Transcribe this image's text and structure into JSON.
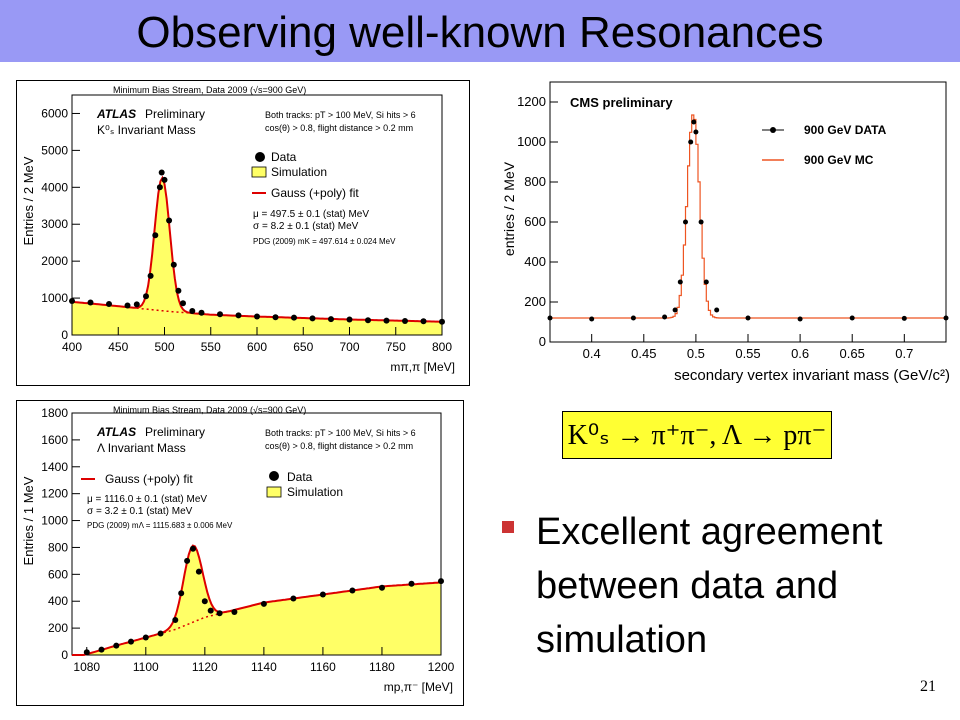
{
  "slide": {
    "title": "Observing well-known Resonances",
    "formula": "K⁰ₛ → π⁺π⁻, Λ → pπ⁻",
    "bullet": "Excellent agreement between data and simulation",
    "page_number": "21"
  },
  "colors": {
    "title_bar": "#9999f5",
    "simulation_fill": "#ffff66",
    "fit_line": "#dd0000",
    "cms_mc": "#ee5522",
    "data": "#000000",
    "bullet": "#cc3333",
    "formula_box": "#ffff33"
  },
  "chart_data": [
    {
      "type": "scatter",
      "header": "Minimum Bias Stream, Data 2009 (√s=900 GeV)",
      "experiment": "ATLAS",
      "status": "Preliminary",
      "subtitle": "K⁰ₛ Invariant Mass",
      "cuts": [
        "Both tracks: pT > 100 MeV, Si hits > 6",
        "cos(θ) > 0.8, flight distance > 0.2 mm"
      ],
      "xlabel": "mπ,π [MeV]",
      "ylabel": "Entries / 2 MeV",
      "xlim": [
        400,
        800
      ],
      "ylim": [
        0,
        6500
      ],
      "xticks": [
        400,
        450,
        500,
        550,
        600,
        650,
        700,
        750,
        800
      ],
      "yticks": [
        0,
        1000,
        2000,
        3000,
        4000,
        5000,
        6000
      ],
      "legend": [
        "Data",
        "Simulation",
        "Gauss (+poly) fit"
      ],
      "fit_results": [
        "μ = 497.5 ± 0.1 (stat) MeV",
        "σ = 8.2 ± 0.1 (stat) MeV",
        "PDG (2009) mK = 497.614 ± 0.024 MeV"
      ],
      "peak": {
        "mean": 497.5,
        "sigma": 8.2,
        "height": 3600
      },
      "background": {
        "x": [
          400,
          450,
          500,
          550,
          600,
          700,
          800
        ],
        "y": [
          900,
          780,
          650,
          550,
          500,
          420,
          360
        ]
      },
      "series": [
        {
          "name": "Data",
          "x": [
            400,
            420,
            440,
            460,
            470,
            480,
            485,
            490,
            495,
            497,
            500,
            505,
            510,
            515,
            520,
            530,
            540,
            560,
            580,
            600,
            620,
            640,
            660,
            680,
            700,
            720,
            740,
            760,
            780,
            800
          ],
          "y": [
            920,
            880,
            840,
            800,
            830,
            1050,
            1600,
            2700,
            4000,
            4400,
            4200,
            3100,
            1900,
            1200,
            860,
            650,
            600,
            560,
            530,
            500,
            480,
            470,
            450,
            430,
            420,
            400,
            390,
            380,
            370,
            360
          ]
        }
      ]
    },
    {
      "type": "scatter",
      "experiment": "CMS preliminary",
      "xlabel": "secondary vertex invariant mass (GeV/c²)",
      "ylabel": "entries / 2 MeV",
      "xlim": [
        0.36,
        0.74
      ],
      "ylim": [
        0,
        1300
      ],
      "xticks": [
        0.4,
        0.45,
        0.5,
        0.55,
        0.6,
        0.65,
        0.7
      ],
      "yticks": [
        0,
        200,
        400,
        600,
        800,
        1000,
        1200
      ],
      "legend": [
        "900 GeV DATA",
        "900 GeV MC"
      ],
      "peak": {
        "mean": 0.4976,
        "sigma": 0.006,
        "height": 1020
      },
      "background": {
        "x": [
          0.36,
          0.74
        ],
        "y": [
          120,
          120
        ]
      },
      "series": [
        {
          "name": "900 GeV DATA",
          "x": [
            0.36,
            0.4,
            0.44,
            0.47,
            0.48,
            0.485,
            0.49,
            0.495,
            0.498,
            0.5,
            0.505,
            0.51,
            0.52,
            0.55,
            0.6,
            0.65,
            0.7,
            0.74
          ],
          "y": [
            120,
            115,
            120,
            125,
            160,
            300,
            600,
            1000,
            1100,
            1050,
            600,
            300,
            160,
            120,
            115,
            120,
            118,
            120
          ]
        },
        {
          "name": "900 GeV MC",
          "x": [
            0.495,
            0.498
          ],
          "y": [
            1150,
            1150
          ]
        }
      ]
    },
    {
      "type": "scatter",
      "header": "Minimum Bias Stream, Data 2009 (√s=900 GeV)",
      "experiment": "ATLAS",
      "status": "Preliminary",
      "subtitle": "Λ Invariant Mass",
      "cuts": [
        "Both tracks: pT > 100 MeV, Si hits > 6",
        "cos(θ) > 0.8, flight distance > 0.2 mm"
      ],
      "xlabel": "mp,π⁻ [MeV]",
      "ylabel": "Entries / 1 MeV",
      "xlim": [
        1075,
        1200
      ],
      "ylim": [
        0,
        1800
      ],
      "xticks": [
        1080,
        1100,
        1120,
        1140,
        1160,
        1180,
        1200
      ],
      "yticks": [
        0,
        200,
        400,
        600,
        800,
        1000,
        1200,
        1400,
        1600,
        1800
      ],
      "legend": [
        "Gauss (+poly) fit",
        "Data",
        "Simulation"
      ],
      "fit_results": [
        "μ = 1116.0 ± 0.1 (stat) MeV",
        "σ = 3.2 ± 0.1 (stat) MeV",
        "PDG (2009) mΛ = 1115.683 ± 0.006 MeV"
      ],
      "peak": {
        "mean": 1116.0,
        "sigma": 3.2,
        "height": 570
      },
      "background": {
        "x": [
          1079,
          1090,
          1100,
          1110,
          1120,
          1140,
          1160,
          1180,
          1200
        ],
        "y": [
          0,
          70,
          130,
          190,
          280,
          390,
          450,
          510,
          540
        ]
      },
      "series": [
        {
          "name": "Data",
          "x": [
            1080,
            1085,
            1090,
            1095,
            1100,
            1105,
            1110,
            1112,
            1114,
            1116,
            1118,
            1120,
            1122,
            1125,
            1130,
            1140,
            1150,
            1160,
            1170,
            1180,
            1190,
            1200
          ],
          "y": [
            20,
            40,
            70,
            100,
            130,
            160,
            260,
            460,
            700,
            790,
            620,
            400,
            330,
            310,
            320,
            380,
            420,
            450,
            480,
            500,
            530,
            550
          ]
        }
      ]
    }
  ]
}
